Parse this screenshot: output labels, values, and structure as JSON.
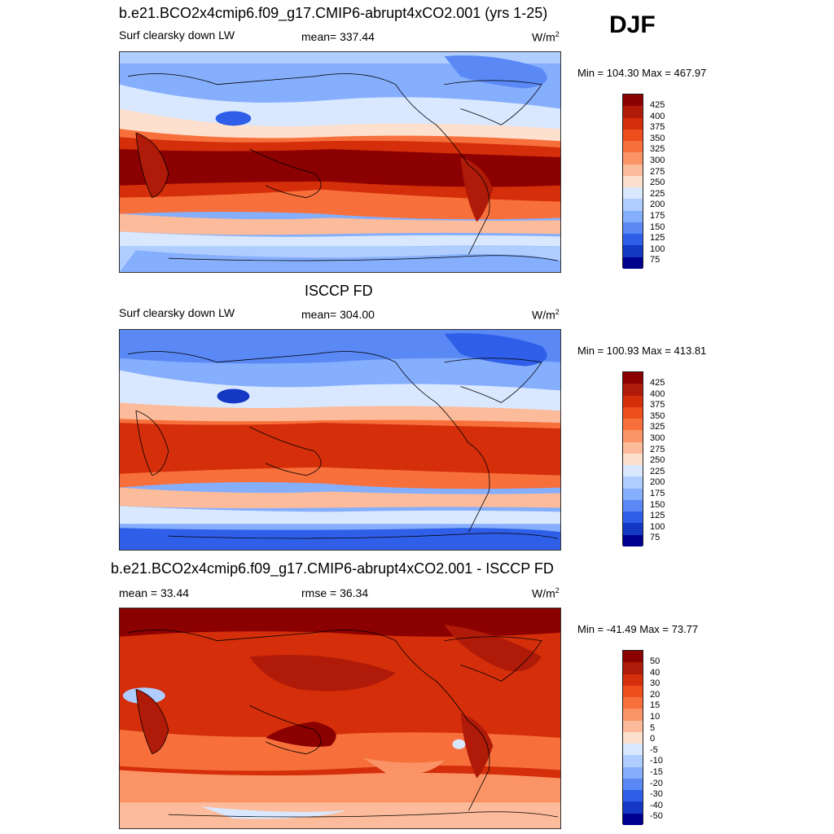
{
  "season": "DJF",
  "panels": [
    {
      "title": "b.e21.BCO2x4cmip6.f09_g17.CMIP6-abrupt4xCO2.001 (yrs 1-25)",
      "left_label": "Surf clearsky down LW",
      "center_label": "mean= 337.44",
      "units": "W/m",
      "units_sup": "2",
      "minmax": "Min = 104.30 Max = 467.97",
      "colorbar_ticks": [
        "425",
        "400",
        "375",
        "350",
        "325",
        "300",
        "275",
        "250",
        "225",
        "200",
        "175",
        "150",
        "125",
        "100",
        "75"
      ]
    },
    {
      "title": "ISCCP FD",
      "left_label": "Surf clearsky down LW",
      "center_label": "mean= 304.00",
      "units": "W/m",
      "units_sup": "2",
      "minmax": "Min = 100.93 Max = 413.81",
      "colorbar_ticks": [
        "425",
        "400",
        "375",
        "350",
        "325",
        "300",
        "275",
        "250",
        "225",
        "200",
        "175",
        "150",
        "125",
        "100",
        "75"
      ]
    },
    {
      "title": "b.e21.BCO2x4cmip6.f09_g17.CMIP6-abrupt4xCO2.001 - ISCCP FD",
      "left_label": "mean =  33.44",
      "center_label": "rmse =  36.34",
      "units": "W/m",
      "units_sup": "2",
      "minmax": "Min = -41.49 Max =  73.77",
      "colorbar_ticks": [
        "50",
        "40",
        "30",
        "20",
        "15",
        "10",
        "5",
        "0",
        "-5",
        "-10",
        "-15",
        "-20",
        "-30",
        "-40",
        "-50"
      ]
    }
  ],
  "colors": {
    "scale": [
      "#8b0000",
      "#b01a08",
      "#d42e0a",
      "#ee4d1c",
      "#f7703b",
      "#fa9466",
      "#fcbb9a",
      "#fde0ce",
      "#d9e8ff",
      "#b0cdff",
      "#85aefc",
      "#5a89f5",
      "#2f5fe8",
      "#1437c4",
      "#00008f"
    ]
  }
}
